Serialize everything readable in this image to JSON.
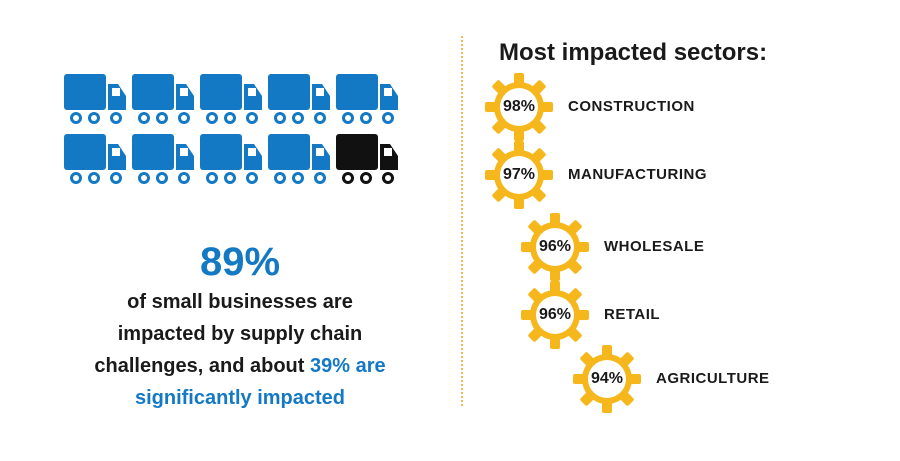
{
  "headline": {
    "percent": "89%",
    "line1": "of small businesses are",
    "line2": "impacted by supply chain",
    "line3_prefix": "challenges, and about",
    "line3_accent": "39% are",
    "line4": "significantly impacted"
  },
  "trucks": {
    "total": 10,
    "highlighted": 1,
    "icon": "truck-icon",
    "colors": {
      "impacted": "#1479c4",
      "not_impacted": "#111111"
    }
  },
  "sectors": {
    "title": "Most impacted sectors:",
    "items": [
      {
        "percent": "98%",
        "label": "CONSTRUCTION"
      },
      {
        "percent": "97%",
        "label": "MANUFACTURING"
      },
      {
        "percent": "96%",
        "label": "WHOLESALE"
      },
      {
        "percent": "96%",
        "label": "RETAIL"
      },
      {
        "percent": "94%",
        "label": "AGRICULTURE"
      }
    ],
    "icon": "gear-icon",
    "gear_color": "#f5b71b"
  },
  "colors": {
    "accent": "#1479c4",
    "text": "#1a1a1a",
    "divider": "#f2b84b"
  }
}
